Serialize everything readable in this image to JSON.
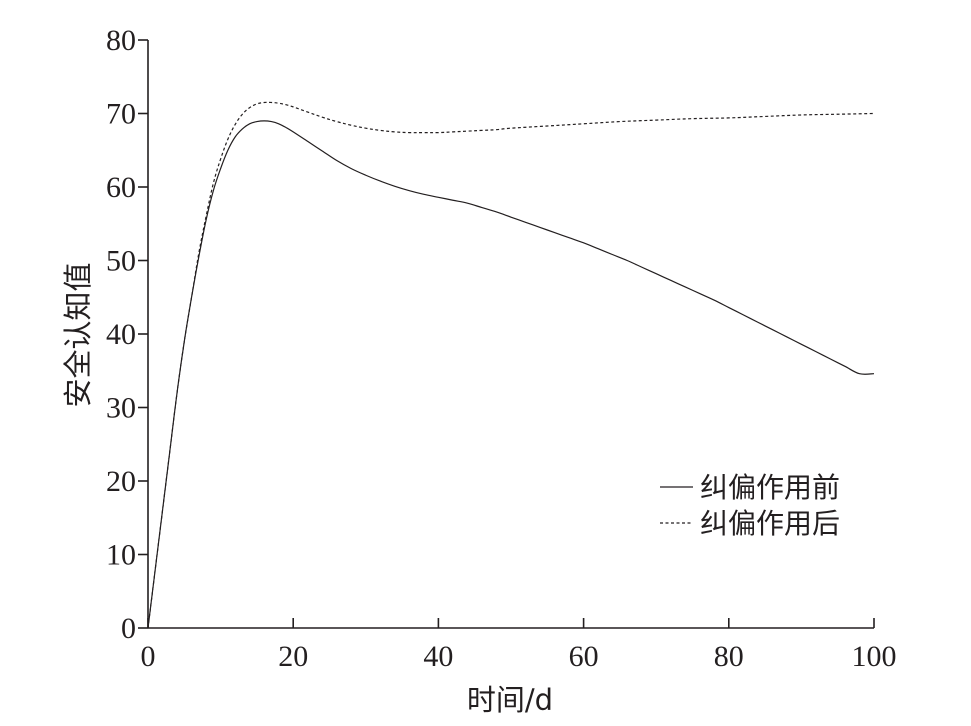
{
  "chart_data": {
    "type": "line",
    "xlabel": "时间/d",
    "ylabel": "安全认知值",
    "xlim": [
      0,
      100
    ],
    "ylim": [
      0,
      80
    ],
    "xticks": [
      0,
      20,
      40,
      60,
      80,
      100
    ],
    "yticks": [
      0,
      10,
      20,
      30,
      40,
      50,
      60,
      70,
      80
    ],
    "grid": false,
    "legend_position": "lower-right",
    "series": [
      {
        "name": "纠偏作用前",
        "style": "solid",
        "x": [
          0,
          1,
          2,
          3,
          4,
          5,
          6,
          7,
          8,
          9,
          10,
          11,
          12,
          13,
          14,
          15,
          16,
          17,
          18,
          19,
          20,
          22,
          24,
          26,
          28,
          30,
          32,
          34,
          36,
          38,
          40,
          42,
          44,
          46,
          48,
          50,
          52,
          54,
          56,
          58,
          60,
          62,
          64,
          66,
          68,
          70,
          72,
          74,
          76,
          78,
          80,
          82,
          84,
          86,
          88,
          90,
          92,
          94,
          96,
          98,
          100
        ],
        "y": [
          0,
          8,
          16,
          24,
          32,
          39,
          45,
          50.5,
          55.5,
          59.5,
          62.5,
          65,
          66.8,
          67.9,
          68.6,
          68.9,
          69,
          68.9,
          68.6,
          68.1,
          67.5,
          66.2,
          64.9,
          63.6,
          62.5,
          61.6,
          60.8,
          60.1,
          59.5,
          59,
          58.6,
          58.2,
          57.8,
          57.2,
          56.6,
          55.9,
          55.2,
          54.5,
          53.8,
          53.1,
          52.4,
          51.6,
          50.8,
          50,
          49.1,
          48.2,
          47.3,
          46.4,
          45.5,
          44.6,
          43.6,
          42.6,
          41.6,
          40.6,
          39.6,
          38.6,
          37.6,
          36.6,
          35.6,
          34.6,
          34.6
        ]
      },
      {
        "name": "纠偏作用后",
        "style": "dashed",
        "x": [
          0,
          1,
          2,
          3,
          4,
          5,
          6,
          7,
          8,
          9,
          10,
          11,
          12,
          13,
          14,
          15,
          16,
          17,
          18,
          19,
          20,
          22,
          24,
          26,
          28,
          30,
          32,
          34,
          36,
          38,
          40,
          42,
          44,
          46,
          48,
          50,
          55,
          60,
          65,
          70,
          75,
          80,
          85,
          90,
          95,
          100
        ],
        "y": [
          0,
          8,
          16,
          24,
          32,
          39,
          45,
          51,
          56,
          60.5,
          63.8,
          66.5,
          68.5,
          69.9,
          70.8,
          71.3,
          71.5,
          71.5,
          71.4,
          71.2,
          70.9,
          70.2,
          69.5,
          68.9,
          68.4,
          68,
          67.7,
          67.5,
          67.4,
          67.4,
          67.4,
          67.5,
          67.6,
          67.7,
          67.8,
          68,
          68.3,
          68.6,
          68.9,
          69.1,
          69.3,
          69.4,
          69.6,
          69.8,
          69.9,
          70
        ]
      }
    ]
  }
}
